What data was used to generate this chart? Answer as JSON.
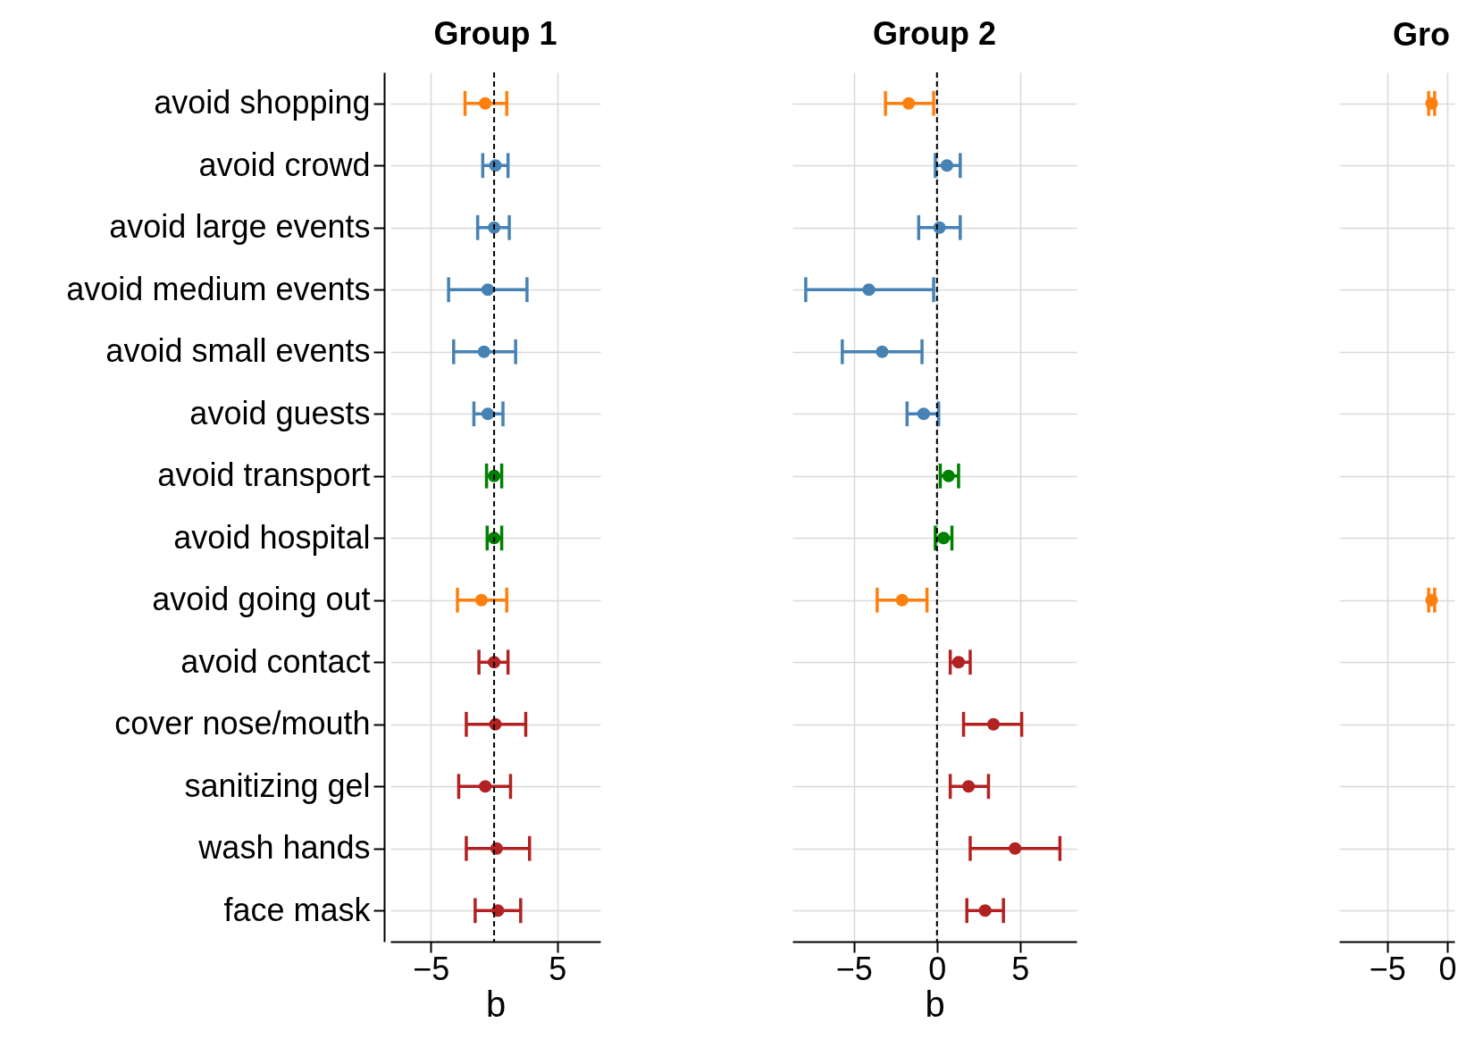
{
  "chart_data": [
    {
      "type": "scatter",
      "orientation": "horizontal",
      "title": "Group 1",
      "xlabel": "b",
      "categories": [
        "avoid shopping",
        "avoid crowd",
        "avoid large events",
        "avoid medium events",
        "avoid small events",
        "avoid guests",
        "avoid transport",
        "avoid hospital",
        "avoid going out",
        "avoid contact",
        "cover nose/mouth",
        "sanitizing gel",
        "wash hands",
        "face mask"
      ],
      "values": [
        -0.7,
        0.1,
        0,
        -0.5,
        -0.8,
        -0.5,
        0,
        0,
        -1.0,
        0,
        0.1,
        -0.7,
        0.2,
        0.3
      ],
      "errors": [
        [
          -2.3,
          1.0
        ],
        [
          -0.9,
          1.1
        ],
        [
          -1.3,
          1.2
        ],
        [
          -3.6,
          2.6
        ],
        [
          -3.2,
          1.7
        ],
        [
          -1.6,
          0.7
        ],
        [
          -0.6,
          0.6
        ],
        [
          -0.55,
          0.6
        ],
        [
          -2.9,
          1.0
        ],
        [
          -1.2,
          1.1
        ],
        [
          -2.2,
          2.5
        ],
        [
          -2.8,
          1.3
        ],
        [
          -2.2,
          2.8
        ],
        [
          -1.5,
          2.1
        ]
      ],
      "colors": [
        "#ff7f0e",
        "#4682b4",
        "#4682b4",
        "#4682b4",
        "#4682b4",
        "#4682b4",
        "#008000",
        "#008000",
        "#ff7f0e",
        "#b22222",
        "#b22222",
        "#b22222",
        "#b22222",
        "#b22222"
      ],
      "xlim": [
        -8.2,
        8.4
      ],
      "xticks": [
        -5,
        5
      ],
      "grid": true,
      "marker": "circle",
      "ref_lines": [
        {
          "axis": "x",
          "value": 0,
          "color": "#000000",
          "line_style": "dashed"
        }
      ]
    },
    {
      "type": "scatter",
      "orientation": "horizontal",
      "title": "Group 2",
      "xlabel": "b",
      "categories": [
        null,
        null,
        null,
        null,
        null,
        null,
        null,
        null,
        null,
        null,
        null,
        null,
        null,
        null
      ],
      "values": [
        -1.7,
        0.6,
        0.15,
        -4.1,
        -3.3,
        -0.8,
        0.7,
        0.4,
        -2.1,
        1.3,
        3.4,
        1.9,
        4.7,
        2.9
      ],
      "errors": [
        [
          -3.1,
          -0.2
        ],
        [
          -0.1,
          1.4
        ],
        [
          -1.1,
          1.4
        ],
        [
          -7.9,
          -0.2
        ],
        [
          -5.7,
          -0.9
        ],
        [
          -1.8,
          0.1
        ],
        [
          0.2,
          1.3
        ],
        [
          -0.1,
          0.9
        ],
        [
          -3.6,
          -0.6
        ],
        [
          0.8,
          2.0
        ],
        [
          1.6,
          5.1
        ],
        [
          0.8,
          3.1
        ],
        [
          2.0,
          7.4
        ],
        [
          1.8,
          4.0
        ]
      ],
      "colors": [
        "#ff7f0e",
        "#4682b4",
        "#4682b4",
        "#4682b4",
        "#4682b4",
        "#4682b4",
        "#008000",
        "#008000",
        "#ff7f0e",
        "#b22222",
        "#b22222",
        "#b22222",
        "#b22222",
        "#b22222"
      ],
      "xlim": [
        -8.7,
        8.4
      ],
      "xticks": [
        -5,
        0,
        5
      ],
      "grid": true,
      "marker": "circle",
      "tick_labels": "x",
      "ref_lines": [
        {
          "axis": "x",
          "value": 0,
          "color": "#000000",
          "line_style": "dashed"
        }
      ]
    },
    {
      "type": "scatter",
      "orientation": "horizontal",
      "title": "Gro",
      "categories": [
        null,
        null,
        null,
        null,
        null,
        null,
        null,
        null,
        null,
        null,
        null,
        null,
        null,
        null
      ],
      "values": [
        -1.3,
        null,
        null,
        null,
        null,
        null,
        null,
        null,
        -1.3,
        null,
        null,
        null,
        null,
        null
      ],
      "errors": [
        [
          -1.55,
          -1.05
        ],
        null,
        null,
        null,
        null,
        null,
        null,
        null,
        [
          -1.55,
          -1.05
        ],
        null,
        null,
        null,
        null,
        null
      ],
      "colors": [
        "#ff7f0e",
        null,
        null,
        null,
        null,
        null,
        null,
        null,
        "#ff7f0e",
        null,
        null,
        null,
        null,
        null
      ],
      "xlim": [
        -9,
        0.6
      ],
      "xticks": [
        -5,
        0
      ],
      "grid": true,
      "marker": "circle",
      "tick_labels": "x"
    }
  ]
}
